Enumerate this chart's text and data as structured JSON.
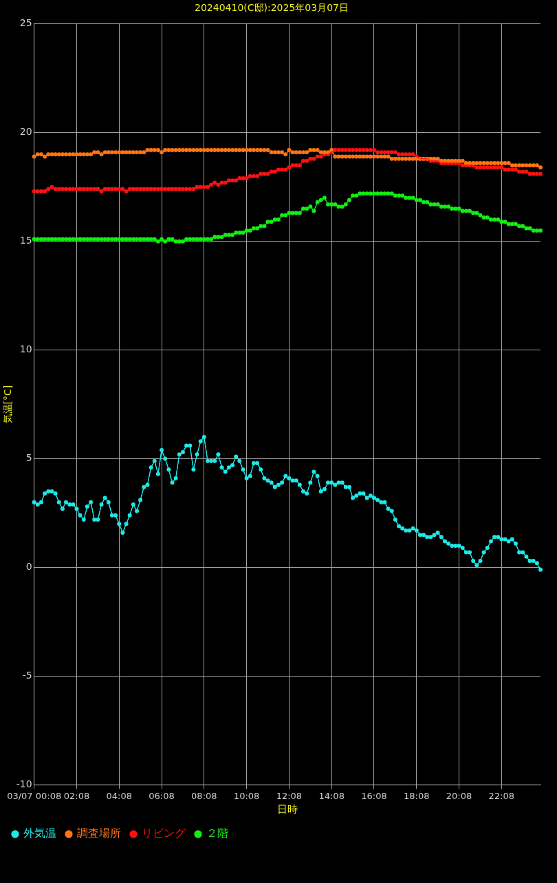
{
  "chart_data": {
    "type": "line",
    "title": "20240410(C邸):2025年03月07日",
    "xlabel": "日時",
    "ylabel": "気温[°C]",
    "x": [
      0.133,
      0.3,
      0.467,
      0.633,
      0.8,
      0.967,
      1.133,
      1.3,
      1.467,
      1.633,
      1.8,
      1.967,
      2.133,
      2.3,
      2.467,
      2.633,
      2.8,
      2.967,
      3.133,
      3.3,
      3.467,
      3.633,
      3.8,
      3.967,
      4.133,
      4.3,
      4.467,
      4.633,
      4.8,
      4.967,
      5.133,
      5.3,
      5.467,
      5.633,
      5.8,
      5.967,
      6.133,
      6.3,
      6.467,
      6.633,
      6.8,
      6.967,
      7.133,
      7.3,
      7.467,
      7.633,
      7.8,
      7.967,
      8.133,
      8.3,
      8.467,
      8.633,
      8.8,
      8.967,
      9.133,
      9.3,
      9.467,
      9.633,
      9.8,
      9.967,
      10.133,
      10.3,
      10.467,
      10.633,
      10.8,
      10.967,
      11.133,
      11.3,
      11.467,
      11.633,
      11.8,
      11.967,
      12.133,
      12.3,
      12.467,
      12.633,
      12.8,
      12.967,
      13.133,
      13.3,
      13.467,
      13.633,
      13.8,
      13.967,
      14.133,
      14.3,
      14.467,
      14.633,
      14.8,
      14.967,
      15.133,
      15.3,
      15.467,
      15.633,
      15.8,
      15.967,
      16.133,
      16.3,
      16.467,
      16.633,
      16.8,
      16.967,
      17.133,
      17.3,
      17.467,
      17.633,
      17.8,
      17.967,
      18.133,
      18.3,
      18.467,
      18.633,
      18.8,
      18.967,
      19.133,
      19.3,
      19.467,
      19.633,
      19.8,
      19.967,
      20.133,
      20.3,
      20.467,
      20.633,
      20.8,
      20.967,
      21.133,
      21.3,
      21.467,
      21.633,
      21.8,
      21.967,
      22.133,
      22.3,
      22.467,
      22.633,
      22.8,
      22.967,
      23.133,
      23.3,
      23.467,
      23.633,
      23.8,
      23.967
    ],
    "series": [
      {
        "name": "外気温",
        "color": "#1ee8e8",
        "values": [
          3.0,
          2.9,
          3.0,
          3.4,
          3.5,
          3.5,
          3.4,
          3.0,
          2.7,
          3.0,
          2.9,
          2.9,
          2.7,
          2.4,
          2.2,
          2.8,
          3.0,
          2.2,
          2.2,
          2.9,
          3.2,
          3.0,
          2.4,
          2.4,
          2.0,
          1.6,
          2.0,
          2.4,
          2.9,
          2.6,
          3.1,
          3.7,
          3.8,
          4.6,
          4.9,
          4.3,
          5.4,
          5.0,
          4.5,
          3.9,
          4.1,
          5.2,
          5.3,
          5.6,
          5.6,
          4.5,
          5.2,
          5.8,
          6.0,
          4.9,
          4.9,
          4.9,
          5.2,
          4.6,
          4.4,
          4.6,
          4.7,
          5.1,
          4.9,
          4.5,
          4.1,
          4.2,
          4.8,
          4.8,
          4.5,
          4.1,
          4.0,
          3.9,
          3.7,
          3.8,
          3.9,
          4.2,
          4.1,
          4.0,
          4.0,
          3.8,
          3.5,
          3.4,
          3.9,
          4.4,
          4.2,
          3.5,
          3.6,
          3.9,
          3.9,
          3.8,
          3.9,
          3.9,
          3.7,
          3.7,
          3.2,
          3.3,
          3.4,
          3.4,
          3.2,
          3.3,
          3.2,
          3.1,
          3.0,
          3.0,
          2.7,
          2.6,
          2.2,
          1.9,
          1.8,
          1.7,
          1.7,
          1.8,
          1.7,
          1.5,
          1.5,
          1.4,
          1.4,
          1.5,
          1.6,
          1.4,
          1.2,
          1.1,
          1.0,
          1.0,
          1.0,
          0.9,
          0.7,
          0.7,
          0.3,
          0.1,
          0.3,
          0.7,
          0.9,
          1.2,
          1.4,
          1.4,
          1.3,
          1.3,
          1.2,
          1.3,
          1.1,
          0.7,
          0.7,
          0.5,
          0.3,
          0.3,
          0.2,
          -0.1
        ]
      },
      {
        "name": "調査場所",
        "color": "#ff7410",
        "values": [
          18.9,
          19,
          19,
          18.9,
          19,
          19,
          19,
          19,
          19,
          19,
          19,
          19,
          19,
          19,
          19,
          19,
          19,
          19.1,
          19.1,
          19,
          19.1,
          19.1,
          19.1,
          19.1,
          19.1,
          19.1,
          19.1,
          19.1,
          19.1,
          19.1,
          19.1,
          19.1,
          19.2,
          19.2,
          19.2,
          19.2,
          19.1,
          19.2,
          19.2,
          19.2,
          19.2,
          19.2,
          19.2,
          19.2,
          19.2,
          19.2,
          19.2,
          19.2,
          19.2,
          19.2,
          19.2,
          19.2,
          19.2,
          19.2,
          19.2,
          19.2,
          19.2,
          19.2,
          19.2,
          19.2,
          19.2,
          19.2,
          19.2,
          19.2,
          19.2,
          19.2,
          19.2,
          19.1,
          19.1,
          19.1,
          19.1,
          19,
          19.2,
          19.1,
          19.1,
          19.1,
          19.1,
          19.1,
          19.2,
          19.2,
          19.2,
          19.1,
          19.1,
          19.1,
          19.2,
          18.9,
          18.9,
          18.9,
          18.9,
          18.9,
          18.9,
          18.9,
          18.9,
          18.9,
          18.9,
          18.9,
          18.9,
          18.9,
          18.9,
          18.9,
          18.9,
          18.8,
          18.8,
          18.8,
          18.8,
          18.8,
          18.8,
          18.8,
          18.8,
          18.8,
          18.8,
          18.8,
          18.8,
          18.8,
          18.8,
          18.7,
          18.7,
          18.7,
          18.7,
          18.7,
          18.7,
          18.7,
          18.6,
          18.6,
          18.6,
          18.6,
          18.6,
          18.6,
          18.6,
          18.6,
          18.6,
          18.6,
          18.6,
          18.6,
          18.6,
          18.5,
          18.5,
          18.5,
          18.5,
          18.5,
          18.5,
          18.5,
          18.5,
          18.4
        ]
      },
      {
        "name": "リビング",
        "color": "#ff1010",
        "values": [
          17.3,
          17.3,
          17.3,
          17.3,
          17.4,
          17.5,
          17.4,
          17.4,
          17.4,
          17.4,
          17.4,
          17.4,
          17.4,
          17.4,
          17.4,
          17.4,
          17.4,
          17.4,
          17.4,
          17.3,
          17.4,
          17.4,
          17.4,
          17.4,
          17.4,
          17.4,
          17.3,
          17.4,
          17.4,
          17.4,
          17.4,
          17.4,
          17.4,
          17.4,
          17.4,
          17.4,
          17.4,
          17.4,
          17.4,
          17.4,
          17.4,
          17.4,
          17.4,
          17.4,
          17.4,
          17.4,
          17.5,
          17.5,
          17.5,
          17.5,
          17.6,
          17.7,
          17.6,
          17.7,
          17.7,
          17.8,
          17.8,
          17.8,
          17.9,
          17.9,
          17.9,
          18.0,
          18.0,
          18.0,
          18.1,
          18.1,
          18.1,
          18.2,
          18.2,
          18.3,
          18.3,
          18.3,
          18.4,
          18.5,
          18.5,
          18.5,
          18.7,
          18.7,
          18.8,
          18.8,
          18.9,
          18.9,
          19.0,
          19.0,
          19.1,
          19.2,
          19.2,
          19.2,
          19.2,
          19.2,
          19.2,
          19.2,
          19.2,
          19.2,
          19.2,
          19.2,
          19.2,
          19.1,
          19.1,
          19.1,
          19.1,
          19.1,
          19.1,
          19.0,
          19.0,
          19.0,
          19.0,
          19.0,
          18.9,
          18.8,
          18.8,
          18.8,
          18.7,
          18.7,
          18.7,
          18.6,
          18.6,
          18.6,
          18.6,
          18.6,
          18.6,
          18.5,
          18.5,
          18.5,
          18.5,
          18.4,
          18.4,
          18.4,
          18.4,
          18.4,
          18.4,
          18.4,
          18.4,
          18.3,
          18.3,
          18.3,
          18.3,
          18.2,
          18.2,
          18.2,
          18.1,
          18.1,
          18.1,
          18.1
        ]
      },
      {
        "name": "２階",
        "color": "#12ee12",
        "values": [
          15.1,
          15.1,
          15.1,
          15.1,
          15.1,
          15.1,
          15.1,
          15.1,
          15.1,
          15.1,
          15.1,
          15.1,
          15.1,
          15.1,
          15.1,
          15.1,
          15.1,
          15.1,
          15.1,
          15.1,
          15.1,
          15.1,
          15.1,
          15.1,
          15.1,
          15.1,
          15.1,
          15.1,
          15.1,
          15.1,
          15.1,
          15.1,
          15.1,
          15.1,
          15.1,
          15.0,
          15.1,
          15.0,
          15.1,
          15.1,
          15.0,
          15.0,
          15.0,
          15.1,
          15.1,
          15.1,
          15.1,
          15.1,
          15.1,
          15.1,
          15.1,
          15.2,
          15.2,
          15.2,
          15.3,
          15.3,
          15.3,
          15.4,
          15.4,
          15.4,
          15.5,
          15.5,
          15.6,
          15.6,
          15.7,
          15.7,
          15.9,
          15.9,
          16.0,
          16.0,
          16.2,
          16.2,
          16.3,
          16.3,
          16.3,
          16.3,
          16.5,
          16.5,
          16.6,
          16.4,
          16.8,
          16.9,
          17.0,
          16.7,
          16.7,
          16.7,
          16.6,
          16.6,
          16.7,
          16.9,
          17.1,
          17.1,
          17.2,
          17.2,
          17.2,
          17.2,
          17.2,
          17.2,
          17.2,
          17.2,
          17.2,
          17.2,
          17.1,
          17.1,
          17.1,
          17.0,
          17.0,
          17.0,
          16.9,
          16.9,
          16.8,
          16.8,
          16.7,
          16.7,
          16.7,
          16.6,
          16.6,
          16.6,
          16.5,
          16.5,
          16.5,
          16.4,
          16.4,
          16.4,
          16.3,
          16.3,
          16.2,
          16.1,
          16.1,
          16.0,
          16.0,
          16.0,
          15.9,
          15.9,
          15.8,
          15.8,
          15.8,
          15.7,
          15.7,
          15.6,
          15.6,
          15.5,
          15.5,
          15.5
        ]
      }
    ],
    "xlim": [
      0.133,
      23.967
    ],
    "xticks": [
      {
        "value": 0.133,
        "label": "03/07 00:08"
      },
      {
        "value": 2.133,
        "label": "02:08"
      },
      {
        "value": 4.133,
        "label": "04:08"
      },
      {
        "value": 6.133,
        "label": "06:08"
      },
      {
        "value": 8.133,
        "label": "08:08"
      },
      {
        "value": 10.133,
        "label": "10:08"
      },
      {
        "value": 12.133,
        "label": "12:08"
      },
      {
        "value": 14.133,
        "label": "14:08"
      },
      {
        "value": 16.133,
        "label": "16:08"
      },
      {
        "value": 18.133,
        "label": "18:08"
      },
      {
        "value": 20.133,
        "label": "20:08"
      },
      {
        "value": 22.133,
        "label": "22:08"
      }
    ],
    "ylim": [
      -10,
      25
    ],
    "yticks": [
      -10,
      -5,
      0,
      5,
      10,
      15,
      20,
      25
    ],
    "grid": true,
    "legend": "bottom left",
    "marker": "circle",
    "line_style": "solid"
  }
}
